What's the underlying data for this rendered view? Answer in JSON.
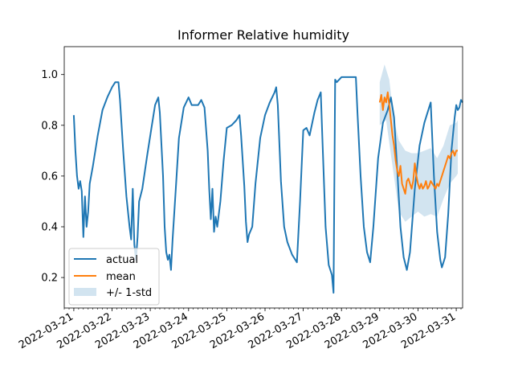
{
  "chart_data": {
    "type": "line",
    "title": "Informer Relative humidity",
    "xlabel": "",
    "ylabel": "",
    "xlim": [
      "2022-03-20T18:00",
      "2022-03-31T04:00"
    ],
    "ylim": [
      0.08,
      1.11
    ],
    "x_ticks": [
      "2022-03-21",
      "2022-03-22",
      "2022-03-23",
      "2022-03-24",
      "2022-03-25",
      "2022-03-26",
      "2022-03-27",
      "2022-03-28",
      "2022-03-29",
      "2022-03-30",
      "2022-03-31"
    ],
    "y_ticks": [
      0.2,
      0.4,
      0.6,
      0.8,
      1.0
    ],
    "y_tick_labels": [
      "0.2",
      "0.4",
      "0.6",
      "0.8",
      "1.0"
    ],
    "grid": false,
    "legend_position": "lower-left",
    "legend": [
      "actual",
      "mean",
      "+/- 1-std"
    ],
    "colors": {
      "actual": "#1f77b4",
      "mean": "#ff7f0e",
      "band": "#1f77b4"
    },
    "series": [
      {
        "name": "actual",
        "points": [
          [
            "2022-03-21T00:00",
            0.84
          ],
          [
            "2022-03-21T01:00",
            0.7
          ],
          [
            "2022-03-21T02:00",
            0.6
          ],
          [
            "2022-03-21T03:00",
            0.55
          ],
          [
            "2022-03-21T04:00",
            0.58
          ],
          [
            "2022-03-21T05:00",
            0.54
          ],
          [
            "2022-03-21T06:00",
            0.36
          ],
          [
            "2022-03-21T07:00",
            0.52
          ],
          [
            "2022-03-21T08:00",
            0.4
          ],
          [
            "2022-03-21T09:00",
            0.46
          ],
          [
            "2022-03-21T10:00",
            0.57
          ],
          [
            "2022-03-21T12:00",
            0.64
          ],
          [
            "2022-03-21T15:00",
            0.76
          ],
          [
            "2022-03-21T18:00",
            0.86
          ],
          [
            "2022-03-21T21:00",
            0.91
          ],
          [
            "2022-03-22T00:00",
            0.95
          ],
          [
            "2022-03-22T02:00",
            0.97
          ],
          [
            "2022-03-22T04:00",
            0.97
          ],
          [
            "2022-03-22T05:00",
            0.9
          ],
          [
            "2022-03-22T07:00",
            0.7
          ],
          [
            "2022-03-22T09:00",
            0.52
          ],
          [
            "2022-03-22T11:00",
            0.4
          ],
          [
            "2022-03-22T12:00",
            0.35
          ],
          [
            "2022-03-22T13:00",
            0.55
          ],
          [
            "2022-03-22T14:00",
            0.33
          ],
          [
            "2022-03-22T15:00",
            0.27
          ],
          [
            "2022-03-22T16:00",
            0.36
          ],
          [
            "2022-03-22T17:00",
            0.5
          ],
          [
            "2022-03-22T19:00",
            0.55
          ],
          [
            "2022-03-22T22:00",
            0.68
          ],
          [
            "2022-03-23T01:00",
            0.8
          ],
          [
            "2022-03-23T03:00",
            0.88
          ],
          [
            "2022-03-23T05:00",
            0.91
          ],
          [
            "2022-03-23T06:00",
            0.85
          ],
          [
            "2022-03-23T08:00",
            0.6
          ],
          [
            "2022-03-23T09:00",
            0.4
          ],
          [
            "2022-03-23T10:00",
            0.3
          ],
          [
            "2022-03-23T11:00",
            0.27
          ],
          [
            "2022-03-23T12:00",
            0.29
          ],
          [
            "2022-03-23T13:00",
            0.23
          ],
          [
            "2022-03-23T14:00",
            0.35
          ],
          [
            "2022-03-23T16:00",
            0.55
          ],
          [
            "2022-03-23T18:00",
            0.75
          ],
          [
            "2022-03-23T21:00",
            0.87
          ],
          [
            "2022-03-24T00:00",
            0.91
          ],
          [
            "2022-03-24T02:00",
            0.88
          ],
          [
            "2022-03-24T06:00",
            0.88
          ],
          [
            "2022-03-24T08:00",
            0.9
          ],
          [
            "2022-03-24T10:00",
            0.87
          ],
          [
            "2022-03-24T12:00",
            0.7
          ],
          [
            "2022-03-24T13:00",
            0.55
          ],
          [
            "2022-03-24T14:00",
            0.43
          ],
          [
            "2022-03-24T15:00",
            0.55
          ],
          [
            "2022-03-24T16:00",
            0.38
          ],
          [
            "2022-03-24T17:00",
            0.44
          ],
          [
            "2022-03-24T18:00",
            0.4
          ],
          [
            "2022-03-24T20:00",
            0.5
          ],
          [
            "2022-03-24T22:00",
            0.66
          ],
          [
            "2022-03-25T00:00",
            0.79
          ],
          [
            "2022-03-25T03:00",
            0.8
          ],
          [
            "2022-03-25T06:00",
            0.82
          ],
          [
            "2022-03-25T08:00",
            0.84
          ],
          [
            "2022-03-25T09:00",
            0.76
          ],
          [
            "2022-03-25T11:00",
            0.56
          ],
          [
            "2022-03-25T12:00",
            0.42
          ],
          [
            "2022-03-25T13:00",
            0.34
          ],
          [
            "2022-03-25T14:00",
            0.37
          ],
          [
            "2022-03-25T16:00",
            0.4
          ],
          [
            "2022-03-25T18:00",
            0.57
          ],
          [
            "2022-03-25T21:00",
            0.75
          ],
          [
            "2022-03-26T00:00",
            0.84
          ],
          [
            "2022-03-26T03:00",
            0.89
          ],
          [
            "2022-03-26T06:00",
            0.93
          ],
          [
            "2022-03-26T07:00",
            0.95
          ],
          [
            "2022-03-26T08:00",
            0.88
          ],
          [
            "2022-03-26T10:00",
            0.58
          ],
          [
            "2022-03-26T12:00",
            0.4
          ],
          [
            "2022-03-26T14:00",
            0.34
          ],
          [
            "2022-03-26T17:00",
            0.29
          ],
          [
            "2022-03-26T20:00",
            0.26
          ],
          [
            "2022-03-26T22:00",
            0.5
          ],
          [
            "2022-03-27T00:00",
            0.78
          ],
          [
            "2022-03-27T02:00",
            0.79
          ],
          [
            "2022-03-27T04:00",
            0.76
          ],
          [
            "2022-03-27T07:00",
            0.85
          ],
          [
            "2022-03-27T09:00",
            0.9
          ],
          [
            "2022-03-27T11:00",
            0.93
          ],
          [
            "2022-03-27T12:00",
            0.75
          ],
          [
            "2022-03-27T14:00",
            0.4
          ],
          [
            "2022-03-27T16:00",
            0.25
          ],
          [
            "2022-03-27T18:00",
            0.21
          ],
          [
            "2022-03-27T19:00",
            0.14
          ],
          [
            "2022-03-27T20:00",
            0.98
          ],
          [
            "2022-03-27T21:00",
            0.97
          ],
          [
            "2022-03-28T00:00",
            0.99
          ],
          [
            "2022-03-28T06:00",
            0.99
          ],
          [
            "2022-03-28T09:00",
            0.99
          ],
          [
            "2022-03-28T10:00",
            0.85
          ],
          [
            "2022-03-28T12:00",
            0.6
          ],
          [
            "2022-03-28T14:00",
            0.4
          ],
          [
            "2022-03-28T16:00",
            0.3
          ],
          [
            "2022-03-28T18:00",
            0.26
          ],
          [
            "2022-03-28T20:00",
            0.4
          ],
          [
            "2022-03-28T23:00",
            0.67
          ],
          [
            "2022-03-29T02:00",
            0.81
          ],
          [
            "2022-03-29T05:00",
            0.86
          ],
          [
            "2022-03-29T07:00",
            0.91
          ],
          [
            "2022-03-29T09:00",
            0.83
          ],
          [
            "2022-03-29T11:00",
            0.62
          ],
          [
            "2022-03-29T13:00",
            0.4
          ],
          [
            "2022-03-29T15:00",
            0.28
          ],
          [
            "2022-03-29T17:00",
            0.23
          ],
          [
            "2022-03-29T19:00",
            0.3
          ],
          [
            "2022-03-29T22:00",
            0.55
          ],
          [
            "2022-03-30T01:00",
            0.72
          ],
          [
            "2022-03-30T04:00",
            0.81
          ],
          [
            "2022-03-30T07:00",
            0.87
          ],
          [
            "2022-03-30T08:00",
            0.89
          ],
          [
            "2022-03-30T10:00",
            0.6
          ],
          [
            "2022-03-30T12:00",
            0.38
          ],
          [
            "2022-03-30T14:00",
            0.27
          ],
          [
            "2022-03-30T15:00",
            0.24
          ],
          [
            "2022-03-30T17:00",
            0.28
          ],
          [
            "2022-03-30T19:00",
            0.45
          ],
          [
            "2022-03-30T21:00",
            0.7
          ],
          [
            "2022-03-30T23:00",
            0.83
          ],
          [
            "2022-03-31T00:00",
            0.88
          ],
          [
            "2022-03-31T01:00",
            0.86
          ],
          [
            "2022-03-31T02:00",
            0.87
          ],
          [
            "2022-03-31T03:00",
            0.9
          ],
          [
            "2022-03-31T04:00",
            0.89
          ]
        ]
      },
      {
        "name": "mean",
        "points": [
          [
            "2022-03-29T00:00",
            0.89
          ],
          [
            "2022-03-29T01:00",
            0.92
          ],
          [
            "2022-03-29T02:00",
            0.86
          ],
          [
            "2022-03-29T03:00",
            0.91
          ],
          [
            "2022-03-29T04:00",
            0.89
          ],
          [
            "2022-03-29T05:00",
            0.93
          ],
          [
            "2022-03-29T06:00",
            0.88
          ],
          [
            "2022-03-29T07:00",
            0.82
          ],
          [
            "2022-03-29T08:00",
            0.76
          ],
          [
            "2022-03-29T09:00",
            0.72
          ],
          [
            "2022-03-29T10:00",
            0.66
          ],
          [
            "2022-03-29T11:00",
            0.62
          ],
          [
            "2022-03-29T12:00",
            0.6
          ],
          [
            "2022-03-29T13:00",
            0.64
          ],
          [
            "2022-03-29T14:00",
            0.57
          ],
          [
            "2022-03-29T15:00",
            0.55
          ],
          [
            "2022-03-29T16:00",
            0.53
          ],
          [
            "2022-03-29T17:00",
            0.58
          ],
          [
            "2022-03-29T18:00",
            0.59
          ],
          [
            "2022-03-29T19:00",
            0.57
          ],
          [
            "2022-03-29T20:00",
            0.55
          ],
          [
            "2022-03-29T21:00",
            0.58
          ],
          [
            "2022-03-29T22:00",
            0.65
          ],
          [
            "2022-03-29T23:00",
            0.6
          ],
          [
            "2022-03-30T00:00",
            0.57
          ],
          [
            "2022-03-30T01:00",
            0.55
          ],
          [
            "2022-03-30T02:00",
            0.57
          ],
          [
            "2022-03-30T03:00",
            0.55
          ],
          [
            "2022-03-30T04:00",
            0.56
          ],
          [
            "2022-03-30T05:00",
            0.58
          ],
          [
            "2022-03-30T06:00",
            0.55
          ],
          [
            "2022-03-30T07:00",
            0.56
          ],
          [
            "2022-03-30T08:00",
            0.58
          ],
          [
            "2022-03-30T09:00",
            0.57
          ],
          [
            "2022-03-30T10:00",
            0.56
          ],
          [
            "2022-03-30T11:00",
            0.55
          ],
          [
            "2022-03-30T12:00",
            0.57
          ],
          [
            "2022-03-30T13:00",
            0.56
          ],
          [
            "2022-03-30T14:00",
            0.58
          ],
          [
            "2022-03-30T15:00",
            0.6
          ],
          [
            "2022-03-30T16:00",
            0.62
          ],
          [
            "2022-03-30T17:00",
            0.64
          ],
          [
            "2022-03-30T18:00",
            0.66
          ],
          [
            "2022-03-30T19:00",
            0.68
          ],
          [
            "2022-03-30T20:00",
            0.67
          ],
          [
            "2022-03-30T21:00",
            0.69
          ],
          [
            "2022-03-30T22:00",
            0.7
          ],
          [
            "2022-03-30T23:00",
            0.68
          ],
          [
            "2022-03-31T00:00",
            0.7
          ],
          [
            "2022-03-31T01:00",
            0.7
          ]
        ]
      },
      {
        "name": "+/- 1-std",
        "lower": [
          [
            "2022-03-29T00:00",
            0.8
          ],
          [
            "2022-03-29T04:00",
            0.82
          ],
          [
            "2022-03-29T08:00",
            0.64
          ],
          [
            "2022-03-29T12:00",
            0.46
          ],
          [
            "2022-03-29T16:00",
            0.42
          ],
          [
            "2022-03-29T20:00",
            0.44
          ],
          [
            "2022-03-30T00:00",
            0.46
          ],
          [
            "2022-03-30T04:00",
            0.44
          ],
          [
            "2022-03-30T08:00",
            0.45
          ],
          [
            "2022-03-30T12:00",
            0.44
          ],
          [
            "2022-03-30T16:00",
            0.51
          ],
          [
            "2022-03-30T20:00",
            0.57
          ],
          [
            "2022-03-31T00:00",
            0.6
          ],
          [
            "2022-03-31T01:00",
            0.61
          ]
        ],
        "upper": [
          [
            "2022-03-29T00:00",
            0.97
          ],
          [
            "2022-03-29T03:00",
            1.04
          ],
          [
            "2022-03-29T06:00",
            0.98
          ],
          [
            "2022-03-29T09:00",
            0.82
          ],
          [
            "2022-03-29T12:00",
            0.74
          ],
          [
            "2022-03-29T16:00",
            0.7
          ],
          [
            "2022-03-29T20:00",
            0.69
          ],
          [
            "2022-03-30T00:00",
            0.69
          ],
          [
            "2022-03-30T04:00",
            0.7
          ],
          [
            "2022-03-30T08:00",
            0.71
          ],
          [
            "2022-03-30T12:00",
            0.67
          ],
          [
            "2022-03-30T16:00",
            0.72
          ],
          [
            "2022-03-30T20:00",
            0.8
          ],
          [
            "2022-03-31T00:00",
            0.81
          ],
          [
            "2022-03-31T01:00",
            0.82
          ]
        ]
      }
    ]
  }
}
